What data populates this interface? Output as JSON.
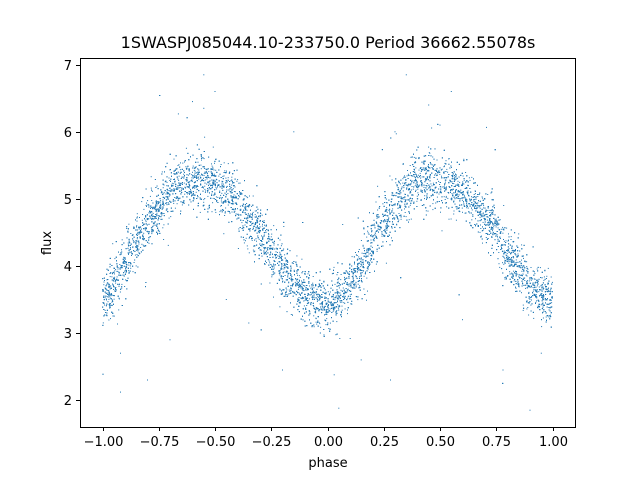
{
  "chart_data": {
    "type": "scatter",
    "title": "1SWASPJ085044.10-233750.0 Period 36662.55078s",
    "xlabel": "phase",
    "ylabel": "flux",
    "xlim": [
      -1.1,
      1.1
    ],
    "ylim": [
      1.6,
      7.1
    ],
    "xticks": [
      -1.0,
      -0.75,
      -0.5,
      -0.25,
      0.0,
      0.25,
      0.5,
      0.75,
      1.0
    ],
    "xtick_labels": [
      "−1.00",
      "−0.75",
      "−0.50",
      "−0.25",
      "0.00",
      "0.25",
      "0.50",
      "0.75",
      "1.00"
    ],
    "yticks": [
      2,
      3,
      4,
      5,
      6,
      7
    ],
    "ytick_labels": [
      "2",
      "3",
      "4",
      "5",
      "6",
      "7"
    ],
    "grid": false,
    "legend": false,
    "marker_color": "#1f77b4",
    "marker_size": "tiny",
    "series": [
      {
        "phase": [
          -1.0,
          -0.95,
          -0.9,
          -0.85,
          -0.8,
          -0.75,
          -0.7,
          -0.65,
          -0.6,
          -0.55,
          -0.5,
          -0.45,
          -0.4,
          -0.35,
          -0.3,
          -0.25,
          -0.2,
          -0.15,
          -0.1,
          -0.05,
          0.0,
          0.05,
          0.1,
          0.15,
          0.2,
          0.25,
          0.3,
          0.35,
          0.4,
          0.45,
          0.5,
          0.55,
          0.6,
          0.65,
          0.7,
          0.75,
          0.8,
          0.85,
          0.9,
          0.95,
          1.0
        ],
        "flux_center": [
          3.5,
          3.7,
          4.0,
          4.35,
          4.65,
          4.9,
          5.1,
          5.25,
          5.3,
          5.28,
          5.22,
          5.1,
          4.92,
          4.72,
          4.5,
          4.25,
          3.95,
          3.7,
          3.55,
          3.48,
          3.45,
          3.5,
          3.7,
          4.0,
          4.35,
          4.65,
          4.9,
          5.1,
          5.25,
          5.3,
          5.28,
          5.22,
          5.1,
          4.92,
          4.72,
          4.5,
          4.2,
          3.9,
          3.65,
          3.55,
          3.5
        ],
        "flux_spread": 0.25,
        "point_count": 9000,
        "outliers": [
          [
            -0.55,
            6.85
          ],
          [
            0.35,
            6.85
          ],
          [
            -0.5,
            6.6
          ],
          [
            0.55,
            6.6
          ],
          [
            -0.6,
            6.45
          ],
          [
            -0.55,
            6.35
          ],
          [
            0.45,
            6.4
          ],
          [
            0.5,
            6.1
          ],
          [
            -0.92,
            2.12
          ],
          [
            -0.8,
            2.3
          ],
          [
            -0.92,
            2.7
          ],
          [
            -0.7,
            2.9
          ],
          [
            0.05,
            1.88
          ],
          [
            0.9,
            1.85
          ],
          [
            0.78,
            2.45
          ],
          [
            0.28,
            2.3
          ],
          [
            -0.35,
            3.15
          ],
          [
            0.15,
            2.6
          ],
          [
            -0.2,
            2.45
          ],
          [
            0.95,
            2.7
          ],
          [
            -0.45,
            3.5
          ],
          [
            0.6,
            3.2
          ],
          [
            -0.15,
            6.0
          ],
          [
            0.3,
            6.0
          ]
        ]
      }
    ]
  }
}
